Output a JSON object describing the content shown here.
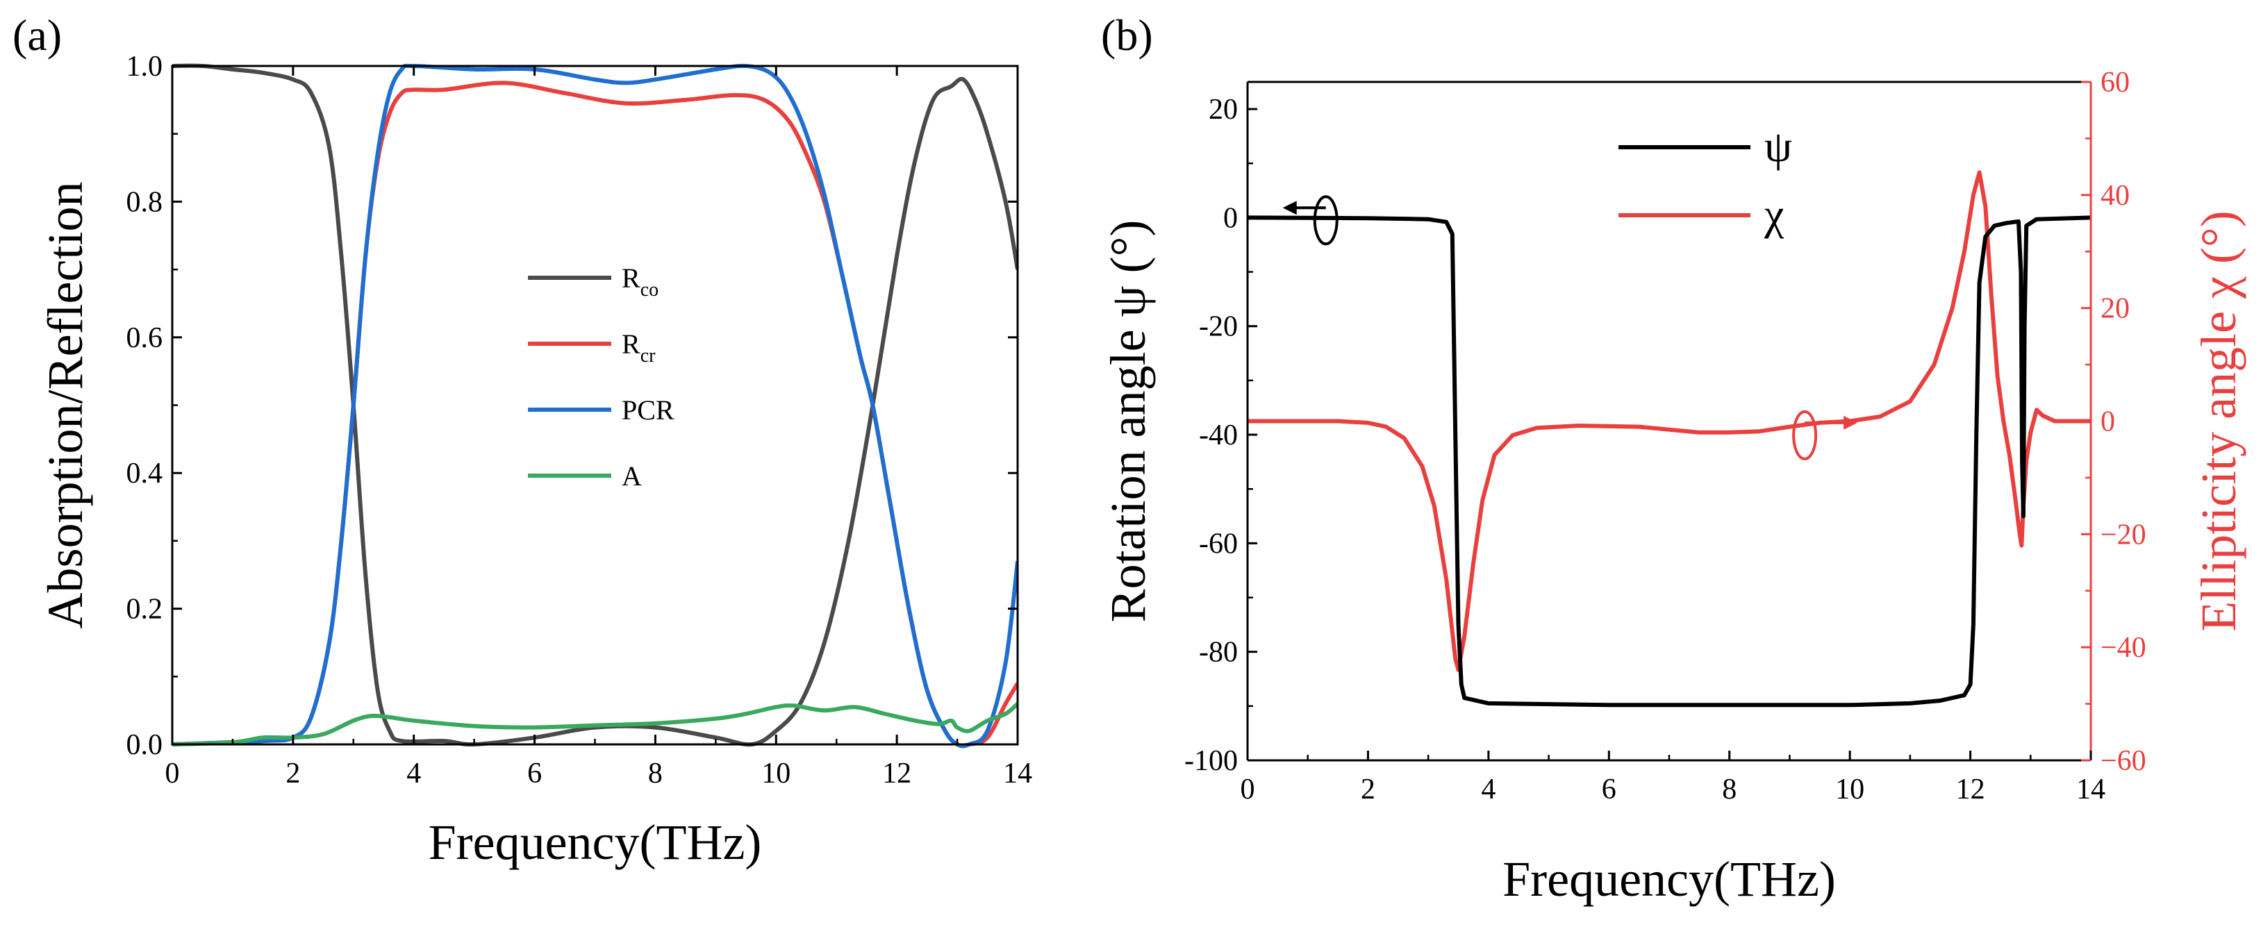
{
  "colors": {
    "axis": "#000000",
    "rco": "#4a4a4a",
    "rcr": "#e8403f",
    "pcr": "#1f6fd0",
    "abs": "#3aa85f",
    "psi": "#000000",
    "chi": "#e8403f",
    "chi_axis": "#e8403f"
  },
  "chart_data": [
    {
      "panel": "(a)",
      "type": "line",
      "xlabel": "Frequency(THz)",
      "ylabel": "Absorption/Reflection",
      "xlim": [
        0,
        14
      ],
      "ylim": [
        0,
        1.0
      ],
      "x_ticks": [
        0,
        2,
        4,
        6,
        8,
        10,
        12,
        14
      ],
      "x_tick_labels": [
        "0",
        "2",
        "4",
        "6",
        "8",
        "10",
        "12",
        "14"
      ],
      "y_ticks": [
        0.0,
        0.2,
        0.4,
        0.6,
        0.8,
        1.0
      ],
      "y_tick_labels": [
        "0.0",
        "0.2",
        "0.4",
        "0.6",
        "0.8",
        "1.0"
      ],
      "legend": {
        "placement": "center",
        "entries": [
          {
            "main": "R",
            "sub": "co"
          },
          {
            "main": "R",
            "sub": "cr"
          },
          {
            "main": "PCR",
            "sub": ""
          },
          {
            "main": "A",
            "sub": ""
          }
        ]
      },
      "series": [
        {
          "name": "Rco",
          "color_key": "rco",
          "points": [
            [
              0,
              1.0
            ],
            [
              0.5,
              1.0
            ],
            [
              1.0,
              0.995
            ],
            [
              1.5,
              0.99
            ],
            [
              2.0,
              0.98
            ],
            [
              2.3,
              0.96
            ],
            [
              2.6,
              0.88
            ],
            [
              2.8,
              0.72
            ],
            [
              3.0,
              0.5
            ],
            [
              3.2,
              0.25
            ],
            [
              3.4,
              0.08
            ],
            [
              3.6,
              0.02
            ],
            [
              3.8,
              0.005
            ],
            [
              4.5,
              0.005
            ],
            [
              5.0,
              0.0
            ],
            [
              6.0,
              0.01
            ],
            [
              7.0,
              0.025
            ],
            [
              8.0,
              0.025
            ],
            [
              9.0,
              0.01
            ],
            [
              9.6,
              0.0
            ],
            [
              10.0,
              0.02
            ],
            [
              10.4,
              0.06
            ],
            [
              10.8,
              0.15
            ],
            [
              11.2,
              0.3
            ],
            [
              11.6,
              0.5
            ],
            [
              12.0,
              0.72
            ],
            [
              12.3,
              0.86
            ],
            [
              12.6,
              0.95
            ],
            [
              12.9,
              0.97
            ],
            [
              13.1,
              0.98
            ],
            [
              13.3,
              0.95
            ],
            [
              13.5,
              0.9
            ],
            [
              13.8,
              0.8
            ],
            [
              14.0,
              0.7
            ]
          ]
        },
        {
          "name": "Rcr",
          "color_key": "rcr",
          "points": [
            [
              0,
              0.0
            ],
            [
              1.5,
              0.005
            ],
            [
              2.0,
              0.01
            ],
            [
              2.3,
              0.04
            ],
            [
              2.6,
              0.15
            ],
            [
              2.8,
              0.3
            ],
            [
              3.0,
              0.5
            ],
            [
              3.2,
              0.72
            ],
            [
              3.4,
              0.86
            ],
            [
              3.6,
              0.93
            ],
            [
              3.8,
              0.96
            ],
            [
              4.0,
              0.965
            ],
            [
              4.5,
              0.965
            ],
            [
              5.5,
              0.975
            ],
            [
              6.5,
              0.96
            ],
            [
              7.5,
              0.945
            ],
            [
              8.5,
              0.95
            ],
            [
              9.3,
              0.957
            ],
            [
              9.8,
              0.95
            ],
            [
              10.2,
              0.92
            ],
            [
              10.5,
              0.87
            ],
            [
              10.8,
              0.8
            ],
            [
              11.1,
              0.69
            ],
            [
              11.4,
              0.57
            ],
            [
              11.6,
              0.5
            ],
            [
              11.9,
              0.35
            ],
            [
              12.2,
              0.2
            ],
            [
              12.5,
              0.08
            ],
            [
              12.8,
              0.02
            ],
            [
              13.0,
              0.0
            ],
            [
              13.2,
              0.0
            ],
            [
              13.5,
              0.01
            ],
            [
              13.8,
              0.06
            ],
            [
              14.0,
              0.09
            ]
          ]
        },
        {
          "name": "PCR",
          "color_key": "pcr",
          "points": [
            [
              0,
              0.0
            ],
            [
              1.5,
              0.005
            ],
            [
              2.0,
              0.01
            ],
            [
              2.3,
              0.04
            ],
            [
              2.6,
              0.15
            ],
            [
              2.8,
              0.3
            ],
            [
              3.0,
              0.5
            ],
            [
              3.2,
              0.72
            ],
            [
              3.4,
              0.87
            ],
            [
              3.6,
              0.96
            ],
            [
              3.8,
              0.995
            ],
            [
              4.0,
              1.0
            ],
            [
              5.0,
              0.995
            ],
            [
              6.0,
              0.995
            ],
            [
              7.0,
              0.98
            ],
            [
              7.5,
              0.975
            ],
            [
              8.0,
              0.98
            ],
            [
              9.0,
              0.995
            ],
            [
              9.5,
              1.0
            ],
            [
              9.9,
              0.99
            ],
            [
              10.2,
              0.96
            ],
            [
              10.5,
              0.9
            ],
            [
              10.8,
              0.81
            ],
            [
              11.1,
              0.69
            ],
            [
              11.4,
              0.57
            ],
            [
              11.6,
              0.5
            ],
            [
              11.9,
              0.35
            ],
            [
              12.2,
              0.2
            ],
            [
              12.5,
              0.08
            ],
            [
              12.8,
              0.02
            ],
            [
              13.0,
              0.0
            ],
            [
              13.2,
              0.0
            ],
            [
              13.5,
              0.02
            ],
            [
              13.8,
              0.12
            ],
            [
              14.0,
              0.27
            ]
          ]
        },
        {
          "name": "A",
          "color_key": "abs",
          "points": [
            [
              0,
              0.0
            ],
            [
              1.0,
              0.003
            ],
            [
              1.5,
              0.01
            ],
            [
              2.0,
              0.01
            ],
            [
              2.5,
              0.015
            ],
            [
              3.0,
              0.035
            ],
            [
              3.3,
              0.042
            ],
            [
              3.6,
              0.04
            ],
            [
              4.0,
              0.035
            ],
            [
              5.0,
              0.027
            ],
            [
              6.0,
              0.025
            ],
            [
              7.0,
              0.028
            ],
            [
              8.0,
              0.031
            ],
            [
              9.0,
              0.038
            ],
            [
              9.5,
              0.045
            ],
            [
              10.0,
              0.055
            ],
            [
              10.3,
              0.057
            ],
            [
              10.8,
              0.05
            ],
            [
              11.3,
              0.055
            ],
            [
              11.8,
              0.045
            ],
            [
              12.3,
              0.035
            ],
            [
              12.7,
              0.03
            ],
            [
              12.9,
              0.035
            ],
            [
              13.0,
              0.025
            ],
            [
              13.2,
              0.02
            ],
            [
              13.5,
              0.035
            ],
            [
              13.8,
              0.045
            ],
            [
              14.0,
              0.06
            ]
          ]
        }
      ]
    },
    {
      "panel": "(b)",
      "type": "line",
      "xlabel": "Frequency(THz)",
      "ylabel": "Rotation angle ψ (°)",
      "ylabel_right": "Ellipticity angle χ (°)",
      "xlim": [
        0,
        14
      ],
      "ylim": [
        -100,
        25
      ],
      "ylim_right": [
        -60,
        60
      ],
      "x_ticks": [
        0,
        2,
        4,
        6,
        8,
        10,
        12,
        14
      ],
      "x_tick_labels": [
        "0",
        "2",
        "4",
        "6",
        "8",
        "10",
        "12",
        "14"
      ],
      "y_ticks": [
        -100,
        -80,
        -60,
        -40,
        -20,
        0,
        20
      ],
      "y_tick_labels": [
        "-100",
        "-80",
        "-60",
        "-40",
        "-20",
        "0",
        "20"
      ],
      "y2_ticks": [
        -60,
        -40,
        -20,
        0,
        20,
        40,
        60
      ],
      "y2_tick_labels": [
        "−60",
        "−40",
        "−20",
        "0",
        "20",
        "40",
        "60"
      ],
      "legend": {
        "placement": "top-center",
        "entries": [
          {
            "main": "ψ",
            "sub": ""
          },
          {
            "main": "χ",
            "sub": ""
          }
        ]
      },
      "series": [
        {
          "name": "ψ",
          "axis": "left",
          "color_key": "psi",
          "points": [
            [
              0,
              0.0
            ],
            [
              2.0,
              -0.1
            ],
            [
              3.0,
              -0.3
            ],
            [
              3.3,
              -0.8
            ],
            [
              3.4,
              -3.0
            ],
            [
              3.45,
              -40
            ],
            [
              3.5,
              -75
            ],
            [
              3.55,
              -86
            ],
            [
              3.6,
              -88.5
            ],
            [
              4.0,
              -89.5
            ],
            [
              6.0,
              -89.8
            ],
            [
              8.0,
              -89.8
            ],
            [
              10.0,
              -89.8
            ],
            [
              11.0,
              -89.5
            ],
            [
              11.5,
              -89.0
            ],
            [
              11.9,
              -88.0
            ],
            [
              12.0,
              -86
            ],
            [
              12.05,
              -75
            ],
            [
              12.1,
              -40
            ],
            [
              12.15,
              -12
            ],
            [
              12.25,
              -3.5
            ],
            [
              12.4,
              -1.5
            ],
            [
              12.6,
              -1.0
            ],
            [
              12.8,
              -0.7
            ],
            [
              12.84,
              -10
            ],
            [
              12.86,
              -45
            ],
            [
              12.88,
              -55
            ],
            [
              12.9,
              -20
            ],
            [
              12.93,
              -1.5
            ],
            [
              13.1,
              -0.3
            ],
            [
              14.0,
              0.0
            ]
          ]
        },
        {
          "name": "χ",
          "axis": "right",
          "color_key": "chi",
          "points": [
            [
              0,
              0.0
            ],
            [
              1.5,
              0.0
            ],
            [
              2.0,
              -0.3
            ],
            [
              2.3,
              -1.0
            ],
            [
              2.6,
              -3.0
            ],
            [
              2.9,
              -8.0
            ],
            [
              3.1,
              -15
            ],
            [
              3.3,
              -28
            ],
            [
              3.45,
              -42
            ],
            [
              3.5,
              -44
            ],
            [
              3.6,
              -38
            ],
            [
              3.75,
              -25
            ],
            [
              3.9,
              -14
            ],
            [
              4.1,
              -6
            ],
            [
              4.4,
              -2.5
            ],
            [
              4.8,
              -1.2
            ],
            [
              5.5,
              -0.8
            ],
            [
              6.5,
              -1.0
            ],
            [
              7.5,
              -2.0
            ],
            [
              8.0,
              -2.0
            ],
            [
              8.5,
              -1.8
            ],
            [
              9.0,
              -1.0
            ],
            [
              9.5,
              -0.3
            ],
            [
              10.0,
              0.0
            ],
            [
              10.5,
              0.8
            ],
            [
              11.0,
              3.5
            ],
            [
              11.4,
              10
            ],
            [
              11.7,
              20
            ],
            [
              11.9,
              30
            ],
            [
              12.05,
              40
            ],
            [
              12.15,
              44
            ],
            [
              12.25,
              38
            ],
            [
              12.35,
              22
            ],
            [
              12.45,
              8
            ],
            [
              12.55,
              0
            ],
            [
              12.65,
              -6
            ],
            [
              12.75,
              -14
            ],
            [
              12.82,
              -20
            ],
            [
              12.85,
              -22
            ],
            [
              12.88,
              -15
            ],
            [
              12.93,
              -7
            ],
            [
              13.0,
              -2
            ],
            [
              13.1,
              2
            ],
            [
              13.2,
              1
            ],
            [
              13.4,
              0
            ],
            [
              14.0,
              0
            ]
          ]
        }
      ]
    }
  ]
}
